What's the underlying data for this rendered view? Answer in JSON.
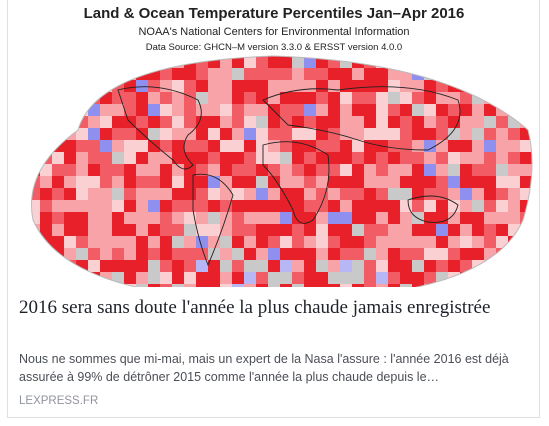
{
  "image": {
    "title": "Land & Ocean Temperature Percentiles Jan–Apr 2016",
    "subtitle": "NOAA's National Centers for Environmental Information",
    "source": "Data Source: GHCN–M version 3.3.0 & ERSST version 4.0.0"
  },
  "article": {
    "headline": "2016 sera sans doute l'année la plus chaude jamais enregistrée",
    "description": "Nous ne sommes que mi-mai, mais un expert de la Nasa l'assure : l'année 2016 est déjà assurée à 99% de détrôner 2015 comme l'année la plus chaude depuis le…",
    "domain": "LEXPRESS.FR"
  }
}
